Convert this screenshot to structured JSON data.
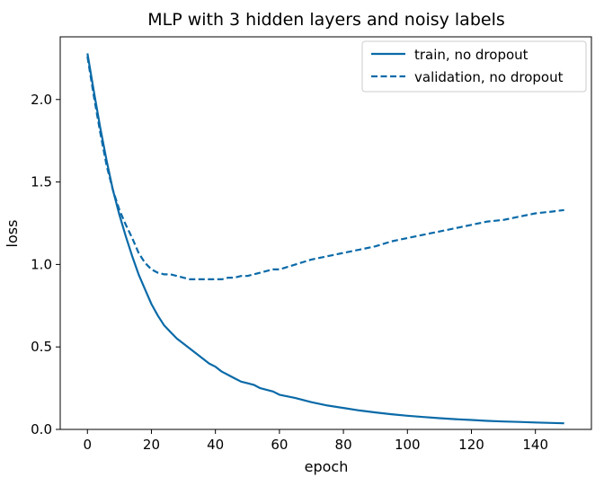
{
  "chart_data": {
    "type": "line",
    "title": "MLP with 3 hidden layers and noisy labels",
    "xlabel": "epoch",
    "ylabel": "loss",
    "xlim": [
      -8.5,
      157.5
    ],
    "ylim": [
      0.0,
      2.38
    ],
    "xticks": [
      0,
      20,
      40,
      60,
      80,
      100,
      120,
      140
    ],
    "yticks": [
      0.0,
      0.5,
      1.0,
      1.5,
      2.0
    ],
    "xtick_labels": [
      "0",
      "20",
      "40",
      "60",
      "80",
      "100",
      "120",
      "140"
    ],
    "ytick_labels": [
      "0.0",
      "0.5",
      "1.0",
      "1.5",
      "2.0"
    ],
    "grid": false,
    "legend_position": "top-right",
    "color": "#0a6aa8",
    "series": [
      {
        "name": "train, no dropout",
        "style": "solid",
        "x": [
          0,
          2,
          4,
          6,
          8,
          10,
          12,
          14,
          16,
          18,
          20,
          22,
          24,
          26,
          28,
          30,
          32,
          34,
          36,
          38,
          40,
          42,
          44,
          46,
          48,
          50,
          52,
          54,
          56,
          58,
          60,
          65,
          70,
          75,
          80,
          85,
          90,
          95,
          100,
          105,
          110,
          115,
          120,
          125,
          130,
          135,
          140,
          145,
          149
        ],
        "y": [
          2.28,
          2.05,
          1.83,
          1.63,
          1.45,
          1.3,
          1.17,
          1.05,
          0.94,
          0.85,
          0.76,
          0.69,
          0.63,
          0.59,
          0.55,
          0.52,
          0.49,
          0.46,
          0.43,
          0.4,
          0.38,
          0.35,
          0.33,
          0.31,
          0.29,
          0.28,
          0.27,
          0.25,
          0.24,
          0.23,
          0.21,
          0.19,
          0.165,
          0.145,
          0.13,
          0.115,
          0.103,
          0.092,
          0.083,
          0.075,
          0.068,
          0.062,
          0.057,
          0.052,
          0.048,
          0.045,
          0.042,
          0.039,
          0.037
        ]
      },
      {
        "name": "validation, no dropout",
        "style": "dashed",
        "x": [
          0,
          2,
          4,
          6,
          8,
          10,
          12,
          14,
          16,
          18,
          20,
          22,
          24,
          26,
          28,
          30,
          32,
          34,
          36,
          38,
          40,
          42,
          44,
          46,
          48,
          50,
          52,
          54,
          56,
          58,
          60,
          65,
          70,
          75,
          80,
          85,
          90,
          95,
          100,
          105,
          110,
          115,
          120,
          125,
          130,
          135,
          140,
          145,
          149
        ],
        "y": [
          2.26,
          2.02,
          1.8,
          1.6,
          1.45,
          1.33,
          1.24,
          1.16,
          1.07,
          1.01,
          0.97,
          0.95,
          0.94,
          0.94,
          0.93,
          0.92,
          0.91,
          0.91,
          0.91,
          0.91,
          0.91,
          0.91,
          0.92,
          0.92,
          0.93,
          0.93,
          0.94,
          0.95,
          0.96,
          0.97,
          0.97,
          1.0,
          1.03,
          1.05,
          1.07,
          1.09,
          1.11,
          1.14,
          1.16,
          1.18,
          1.2,
          1.22,
          1.24,
          1.26,
          1.27,
          1.29,
          1.31,
          1.32,
          1.33
        ]
      }
    ]
  }
}
